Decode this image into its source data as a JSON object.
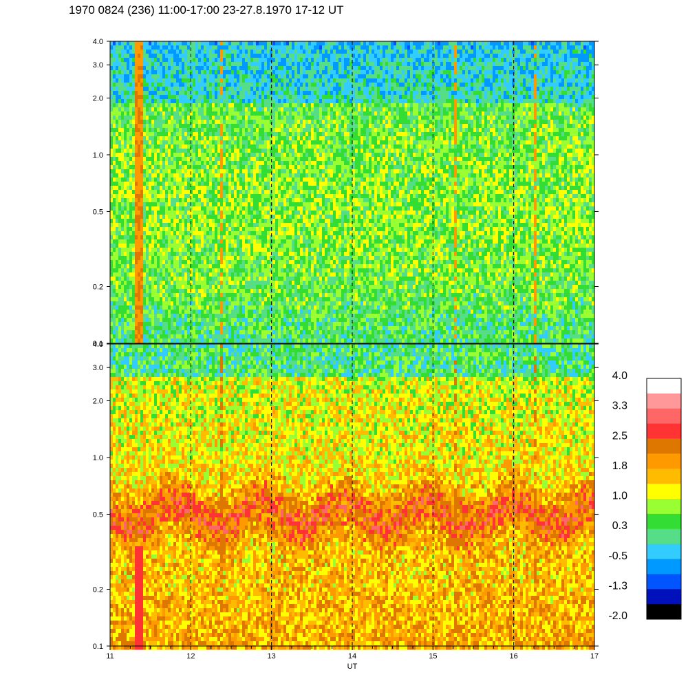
{
  "title": "1970 0824 (236) 11:00-17:00 23-27.8.1970  17-12 UT",
  "chart_data": {
    "type": "heatmap",
    "xlabel": "UT",
    "x_ticks": [
      "11",
      "12",
      "13",
      "14",
      "15",
      "16",
      "17"
    ],
    "xlim": [
      11,
      17
    ],
    "x_dashed_lines": [
      12,
      13,
      14,
      15,
      16
    ],
    "panels": [
      {
        "name": "upper",
        "y_scale": "log",
        "ylim": [
          0.1,
          4.0
        ],
        "y_ticks": [
          "0.1",
          "0.2",
          "0.5",
          "1.0",
          "2.0",
          "3.0",
          "4.0"
        ],
        "dominant_levels": "green-yellow (approx 0.3 to 1.0), with blue-cyan near top, isolated red/orange streaks near 11.35 UT and 16.25 UT"
      },
      {
        "name": "lower",
        "y_scale": "log",
        "ylim": [
          0.1,
          4.0
        ],
        "y_ticks": [
          "0.1",
          "0.2",
          "0.5",
          "1.0",
          "2.0",
          "3.0",
          "4.0"
        ],
        "dominant_levels": "orange-yellow (approx 1.0 to 2.5), dark orange band near 0.5-0.8, green-yellow near top, red streak near 11.35 UT"
      }
    ],
    "colorbar": {
      "tick_labels": [
        "4.0",
        "3.3",
        "2.5",
        "1.8",
        "1.0",
        "0.3",
        "-0.5",
        "-1.3",
        "-2.0"
      ],
      "colors_top_to_bottom": [
        "#ffffff",
        "#ff9999",
        "#ff6666",
        "#ff3333",
        "#dd7700",
        "#ff9900",
        "#ffbb00",
        "#ffff00",
        "#99ff33",
        "#33dd33",
        "#55dd88",
        "#33ccff",
        "#0099ff",
        "#0055ff",
        "#0011bb",
        "#000000"
      ]
    }
  }
}
